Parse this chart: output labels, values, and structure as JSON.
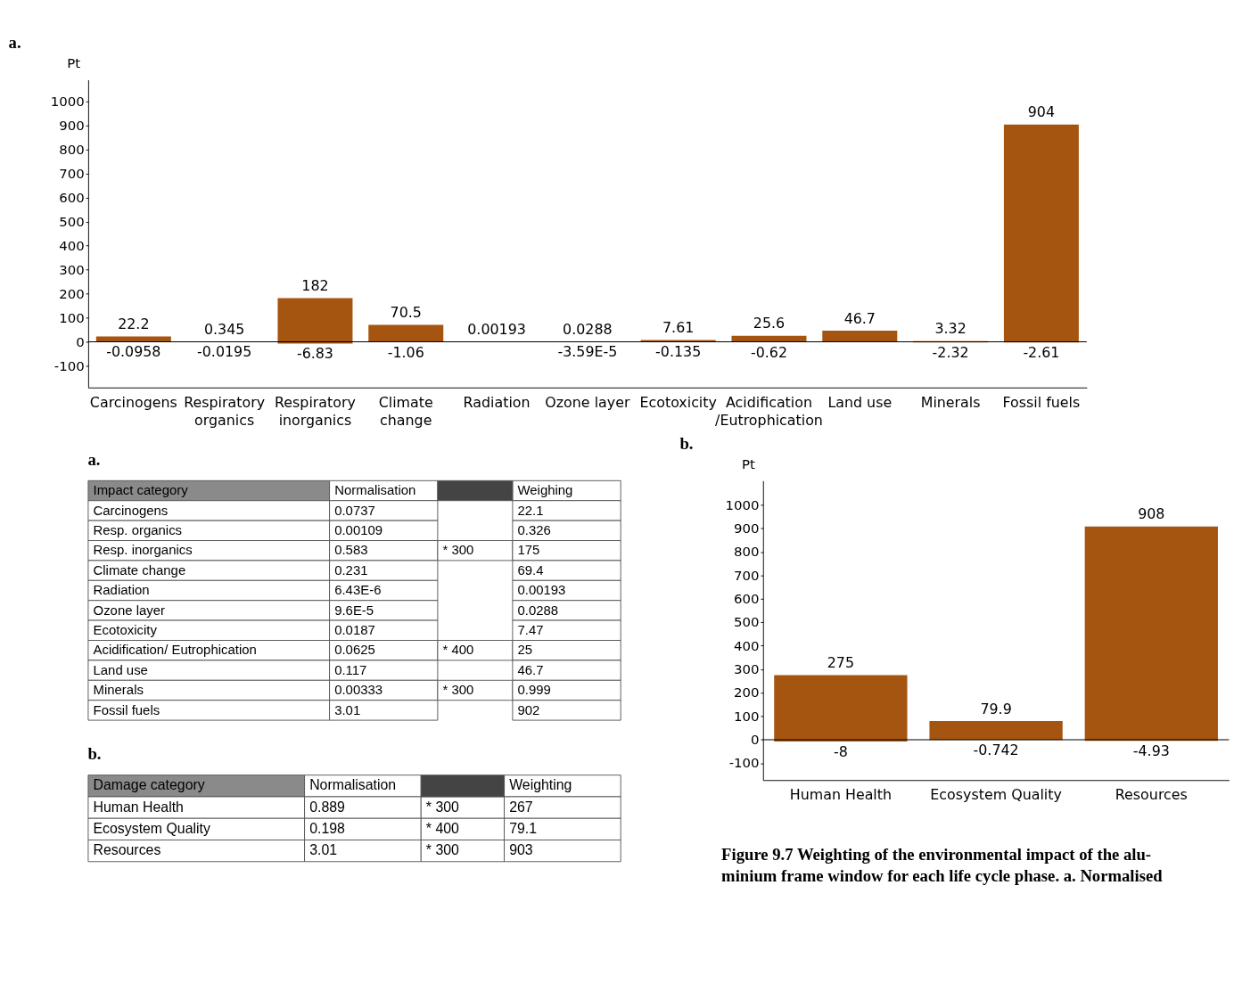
{
  "chart_data": [
    {
      "type": "bar",
      "title": "a.",
      "ylabel": "Pt",
      "categories": [
        "Carcinogens",
        "Respiratory\norganics",
        "Respiratory\ninorganics",
        "Climate\nchange",
        "Radiation",
        "Ozone layer",
        "Ecotoxicity",
        "Acidification\n/Eutrophication",
        "Land use",
        "Minerals",
        "Fossil fuels"
      ],
      "series": [
        {
          "color": "#a65511",
          "values": [
            22.2,
            0.345,
            182,
            70.5,
            0.00193,
            0.0288,
            7.61,
            25.6,
            46.7,
            3.32,
            904
          ],
          "value_labels": [
            "22.2",
            "0.345",
            "182",
            "70.5",
            "0.00193",
            "0.0288",
            "7.61",
            "25.6",
            "46.7",
            "3.32",
            "904"
          ]
        },
        {
          "color": "#a65511",
          "values": [
            -0.0958,
            -0.0195,
            -6.83,
            -1.06,
            null,
            -3.59e-05,
            -0.135,
            -0.62,
            null,
            -2.32,
            -2.61
          ],
          "value_labels": [
            "-0.0958",
            "-0.0195",
            "-6.83",
            "-1.06",
            null,
            "-3.59E-5",
            "-0.135",
            "-0.62",
            null,
            "-2.32",
            "-2.61"
          ]
        }
      ],
      "ylim": [
        -190,
        1090
      ],
      "yticks": [
        -100,
        0,
        100,
        200,
        300,
        400,
        500,
        600,
        700,
        800,
        900,
        1000
      ],
      "ref_lines": [
        {
          "axis": "y",
          "value": 0
        }
      ],
      "grid": false
    },
    {
      "type": "other",
      "title": "a.",
      "categories": [
        "Impact category",
        "Normalisation",
        null,
        "Weighing"
      ],
      "y_categories": [
        "Carcinogens",
        "Resp. organics",
        "Resp. inorganics",
        "Climate change",
        "Radiation",
        "Ozone layer",
        "Ecotoxicity",
        "Acidification/ Eutrophication",
        "Land use",
        "Minerals",
        "Fossil fuels"
      ],
      "cell_labels": [
        [
          "0.0737",
          null,
          "22.1"
        ],
        [
          "0.00109",
          null,
          "0.326"
        ],
        [
          "0.583",
          "* 300",
          "175"
        ],
        [
          "0.231",
          null,
          "69.4"
        ],
        [
          "6.43E-6",
          null,
          "0.00193"
        ],
        [
          "9.6E-5",
          null,
          "0.0288"
        ],
        [
          "0.0187",
          null,
          "7.47"
        ],
        [
          "0.0625",
          "* 400",
          "25"
        ],
        [
          "0.117",
          null,
          "46.7"
        ],
        [
          "0.00333",
          "* 300",
          "0.999"
        ],
        [
          "3.01",
          null,
          "902"
        ]
      ]
    },
    {
      "type": "other",
      "title": "b.",
      "categories": [
        "Damage category",
        "Normalisation",
        null,
        "Weighting"
      ],
      "y_categories": [
        "Human Health",
        "Ecosystem Quality",
        "Resources"
      ],
      "cell_labels": [
        [
          "0.889",
          "* 300",
          "267"
        ],
        [
          "0.198",
          "* 400",
          "79.1"
        ],
        [
          "3.01",
          "* 300",
          "903"
        ]
      ]
    },
    {
      "type": "bar",
      "title": "b.",
      "ylabel": "Pt",
      "categories": [
        "Human Health",
        "Ecosystem Quality",
        "Resources"
      ],
      "series": [
        {
          "color": "#a65511",
          "values": [
            275,
            79.9,
            908
          ],
          "value_labels": [
            "275",
            "79.9",
            "908"
          ]
        },
        {
          "color": "#a65511",
          "values": [
            -8,
            -0.742,
            -4.93
          ],
          "value_labels": [
            "-8",
            "-0.742",
            "-4.93"
          ]
        }
      ],
      "ylim": [
        -172,
        1103
      ],
      "yticks": [
        -100,
        0,
        100,
        200,
        300,
        400,
        500,
        600,
        700,
        800,
        900,
        1000
      ],
      "ref_lines": [
        {
          "axis": "y",
          "value": 0
        }
      ],
      "grid": false,
      "annotations": [
        "Figure 9.7 Weighting of the environmental impact of the alu-",
        "minium frame window for each life cycle phase. a. Normalised"
      ]
    }
  ]
}
